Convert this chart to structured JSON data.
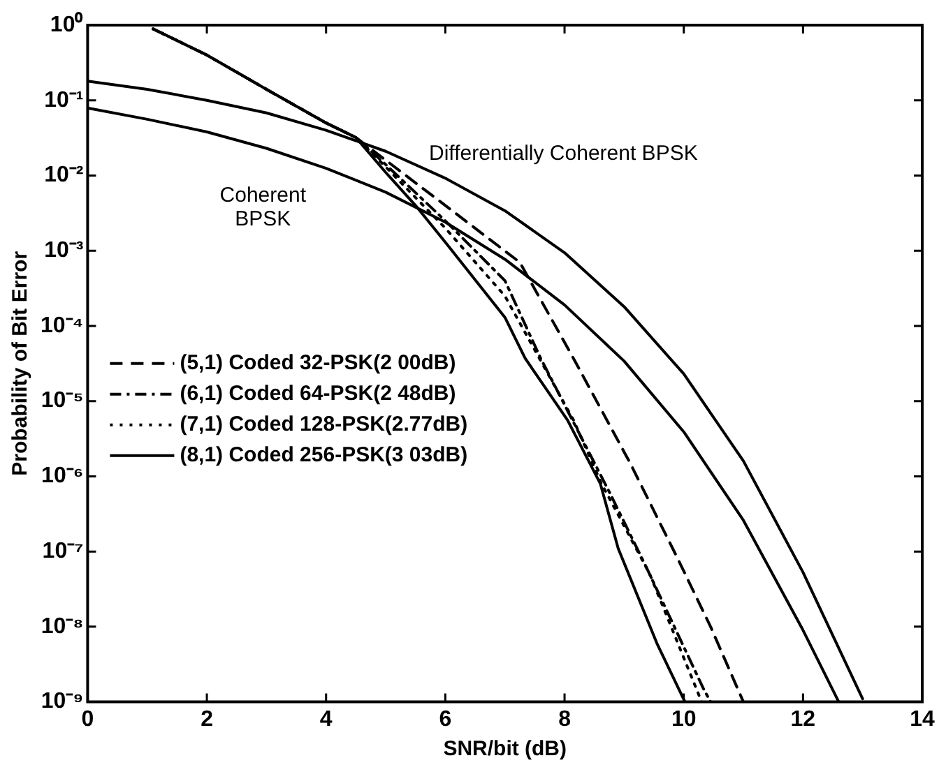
{
  "chart_data": {
    "type": "line",
    "xlabel": "SNR/bit (dB)",
    "ylabel": "Probability of Bit Error",
    "log": "y",
    "grid": false,
    "marker": "none",
    "legend": "bottom left",
    "xlim": [
      0,
      14
    ],
    "xticks": [
      0,
      2,
      4,
      6,
      8,
      10,
      12,
      14
    ],
    "ylim": [
      1e-09,
      1
    ],
    "yticks": [
      {
        "value": 1,
        "label": "10⁰"
      },
      {
        "value": 0.1,
        "label": "10⁻¹"
      },
      {
        "value": 0.01,
        "label": "10⁻²"
      },
      {
        "value": 0.001,
        "label": "10⁻³"
      },
      {
        "value": 0.0001,
        "label": "10⁻⁴"
      },
      {
        "value": 1e-05,
        "label": "10⁻⁵"
      },
      {
        "value": 1e-06,
        "label": "10⁻⁶"
      },
      {
        "value": 1e-07,
        "label": "10⁻⁷"
      },
      {
        "value": 1e-08,
        "label": "10⁻⁸"
      },
      {
        "value": 1e-09,
        "label": "10⁻⁹"
      }
    ],
    "series": [
      {
        "name": "(5,1) Coded 32-PSK(2 00dB)",
        "color": "#000000",
        "line_style": "dashed",
        "x": [
          1.1,
          2,
          3,
          4,
          4.5,
          5,
          6,
          7.25,
          8.15,
          9.1,
          9.9,
          10.45,
          11.0
        ],
        "values": [
          0.89,
          0.4,
          0.14,
          0.05,
          0.032,
          0.016,
          0.004,
          0.0007,
          3.7e-05,
          1.5e-06,
          8e-08,
          1e-08,
          1e-09
        ]
      },
      {
        "name": "(6,1) Coded 64-PSK(2 48dB)",
        "color": "#000000",
        "line_style": "dashdot",
        "x": [
          1.1,
          2,
          3,
          4,
          4.5,
          5,
          6,
          7,
          7.6,
          8.76,
          9.38,
          10.33,
          10.45
        ],
        "values": [
          0.89,
          0.4,
          0.14,
          0.05,
          0.032,
          0.014,
          0.0025,
          0.0004,
          3.7e-05,
          6e-07,
          6e-08,
          1.5e-09,
          1e-09
        ]
      },
      {
        "name": "(7,1) Coded 128-PSK(2.77dB)",
        "color": "#000000",
        "line_style": "dotted",
        "x": [
          1.1,
          2,
          3,
          4,
          4.5,
          5,
          6,
          7,
          8.15,
          8.62,
          9.43,
          10.3
        ],
        "values": [
          0.89,
          0.4,
          0.14,
          0.05,
          0.032,
          0.013,
          0.002,
          0.00025,
          5.6e-06,
          8e-07,
          5e-08,
          1e-09
        ]
      },
      {
        "name": "(8,1) Coded 256-PSK(3 03dB)",
        "color": "#000000",
        "line_style": "solid",
        "x": [
          1.1,
          2,
          3,
          4,
          4.5,
          5,
          5.5,
          6,
          7,
          7.34,
          8.05,
          8.6,
          8.9,
          9.55,
          10.02
        ],
        "values": [
          0.89,
          0.4,
          0.14,
          0.05,
          0.032,
          0.011,
          0.004,
          0.0013,
          0.00013,
          3.7e-05,
          5.6e-06,
          8e-07,
          1.1e-07,
          6e-09,
          1e-09
        ]
      },
      {
        "color": "#000000",
        "line_style": "solid",
        "x": [
          0,
          1,
          2,
          3,
          4,
          5,
          6,
          7,
          8,
          9,
          10,
          11,
          12,
          12.6
        ],
        "values": [
          0.079,
          0.056,
          0.038,
          0.023,
          0.0125,
          0.006,
          0.0024,
          0.00077,
          0.00019,
          3.4e-05,
          3.9e-06,
          2.6e-07,
          9e-09,
          1e-09
        ]
      },
      {
        "color": "#000000",
        "line_style": "solid",
        "x": [
          0,
          1,
          2,
          3,
          4,
          5,
          6,
          7,
          8,
          9,
          10,
          11,
          12,
          13
        ],
        "values": [
          0.18,
          0.14,
          0.1,
          0.068,
          0.04,
          0.021,
          0.0092,
          0.0034,
          0.00094,
          0.00018,
          2.3e-05,
          1.6e-06,
          5.3e-08,
          1.1e-09
        ]
      }
    ],
    "annotations": [
      "Coherent BPSK",
      "Differentially Coherent BPSK"
    ]
  }
}
